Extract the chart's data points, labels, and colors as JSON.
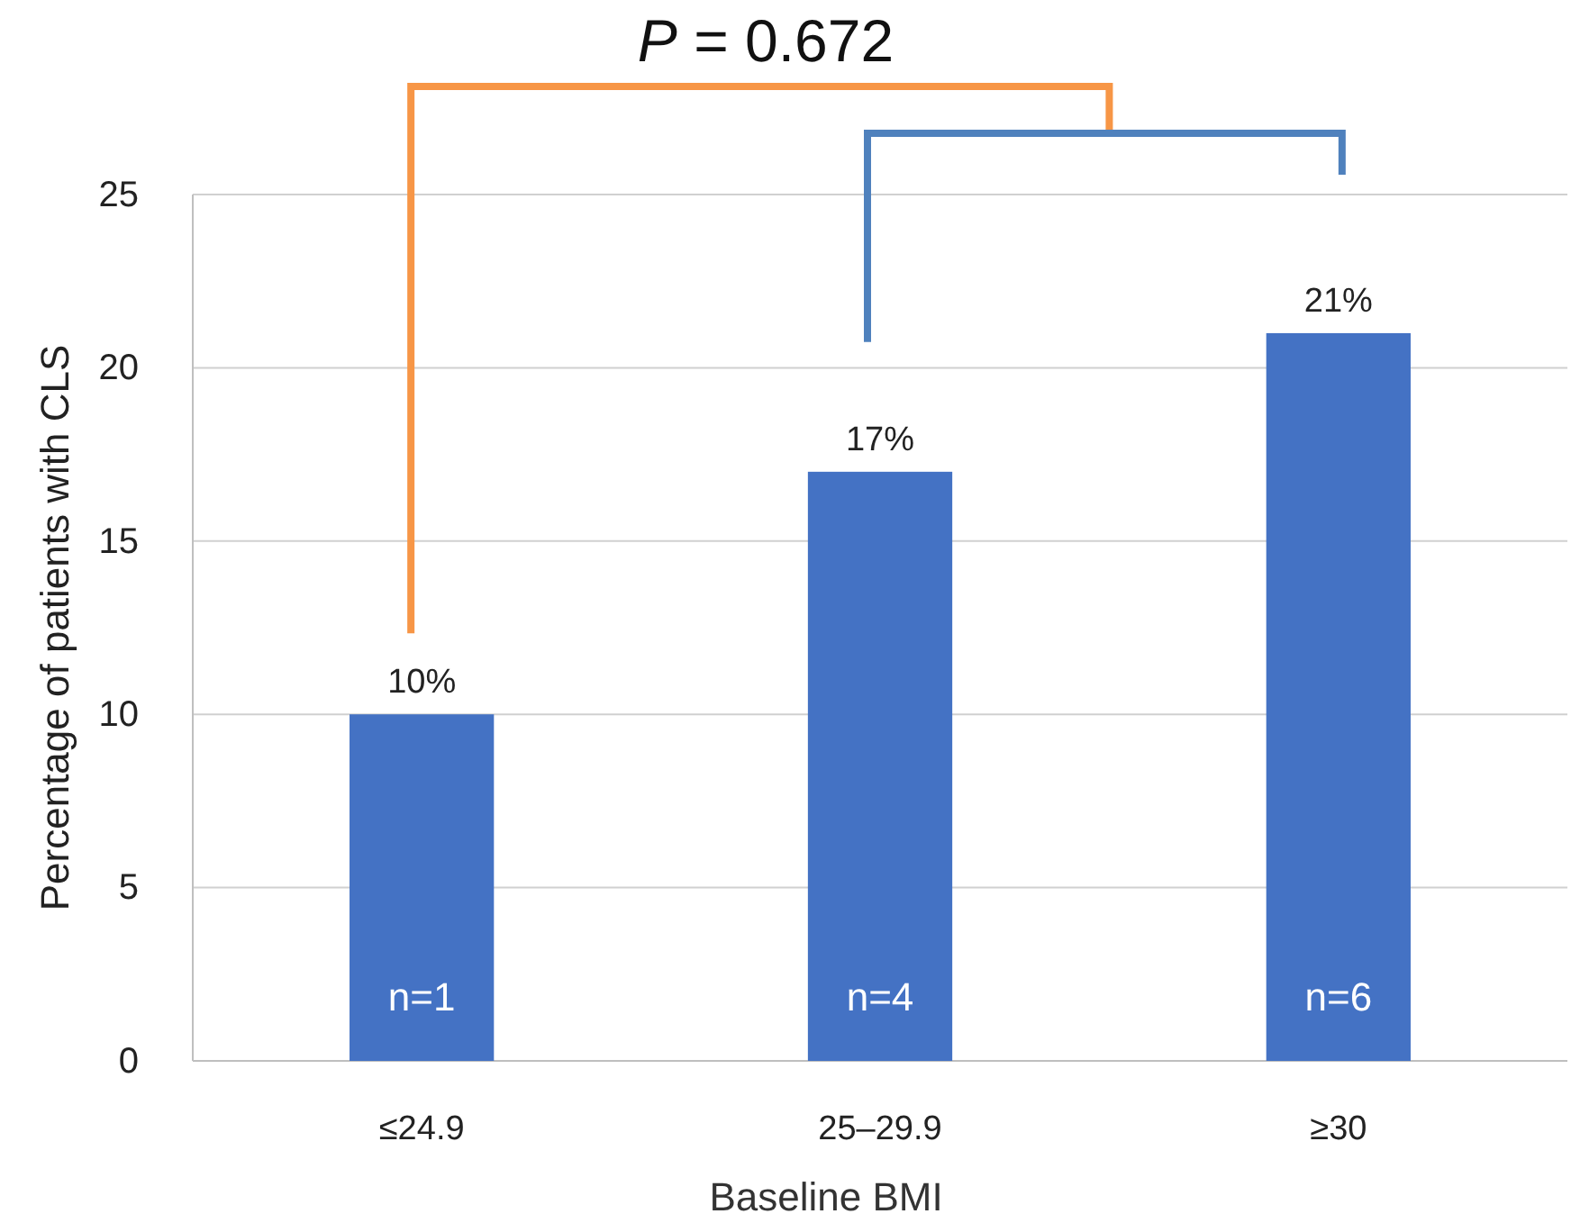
{
  "chart_data": {
    "type": "bar",
    "xlabel": "Baseline BMI",
    "ylabel": "Percentage of patients with CLS",
    "categories": [
      "≤24.9",
      "25–29.9",
      "≥30"
    ],
    "values": [
      10,
      17,
      21
    ],
    "value_labels": [
      "10%",
      "17%",
      "21%"
    ],
    "color": "#4472c4",
    "ylim": [
      0,
      25
    ],
    "yticks": [
      0,
      5,
      10,
      15,
      20,
      25
    ],
    "grid": "y",
    "annotations": [
      "P = 0.672",
      "n=1",
      "n=4",
      "n=6"
    ]
  }
}
